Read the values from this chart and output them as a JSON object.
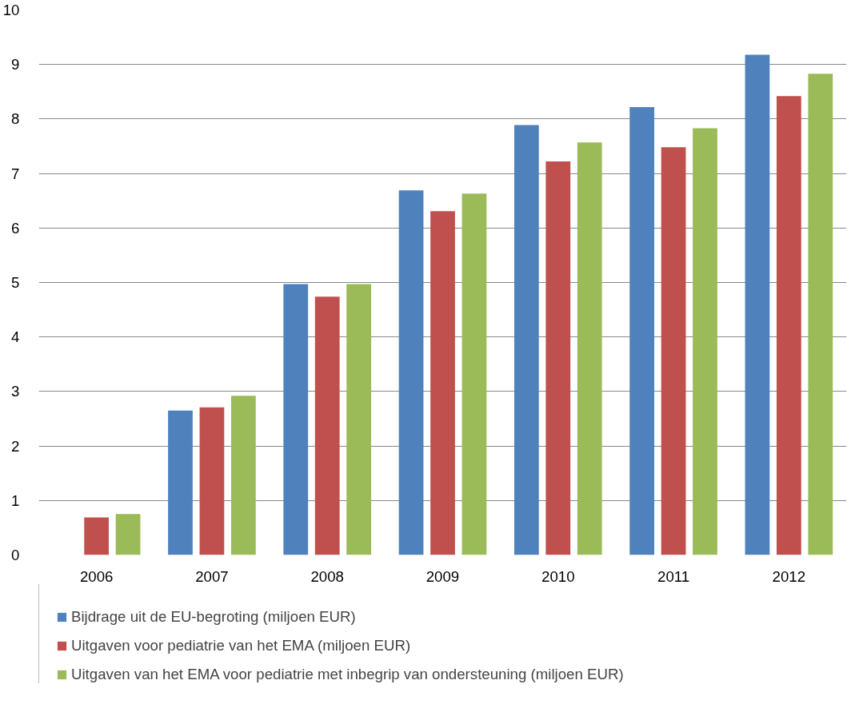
{
  "chart_data": {
    "type": "bar",
    "categories": [
      "2006",
      "2007",
      "2008",
      "2009",
      "2010",
      "2011",
      "2012"
    ],
    "series": [
      {
        "name": "Bijdrage uit de EU-begroting (miljoen EUR)",
        "color": "#4f81bd",
        "values": [
          null,
          2.65,
          4.97,
          6.69,
          7.89,
          8.22,
          9.18
        ]
      },
      {
        "name": "Uitgaven voor pediatrie van het EMA (miljoen EUR)",
        "color": "#c0504d",
        "values": [
          0.69,
          2.71,
          4.74,
          6.31,
          7.22,
          7.48,
          8.42
        ]
      },
      {
        "name": "Uitgaven van het EMA voor pediatrie met inbegrip van ondersteuning (miljoen EUR)",
        "color": "#9bbb59",
        "values": [
          0.75,
          2.92,
          4.97,
          6.63,
          7.57,
          7.83,
          8.83
        ]
      }
    ],
    "ylim": [
      0,
      10
    ],
    "yticks": [
      0,
      1,
      2,
      3,
      4,
      5,
      6,
      7,
      8,
      9,
      10
    ],
    "grid": "y",
    "legend": "bottom"
  }
}
